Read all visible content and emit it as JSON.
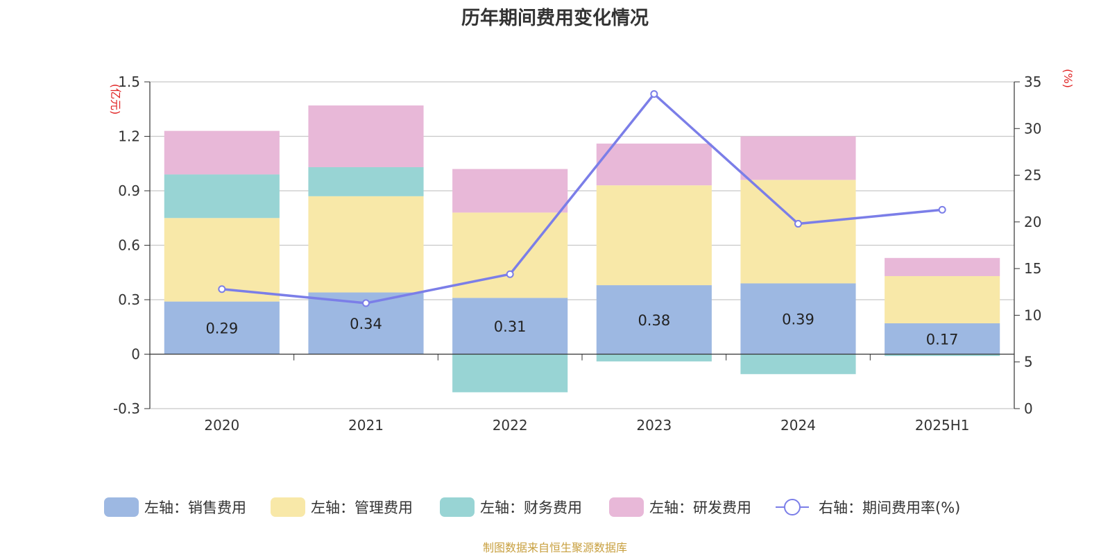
{
  "chart_data": {
    "type": "bar",
    "title": "历年期间费用变化情况",
    "categories": [
      "2020",
      "2021",
      "2022",
      "2023",
      "2024",
      "2025H1"
    ],
    "y_left": {
      "unit": "(亿元)",
      "min": -0.3,
      "max": 1.5,
      "ticks": [
        -0.3,
        0,
        0.3,
        0.6,
        0.9,
        1.2,
        1.5
      ],
      "tick_labels": [
        "-0.3",
        "0",
        "0.3",
        "0.6",
        "0.9",
        "1.2",
        "1.5"
      ]
    },
    "y_right": {
      "unit": "(%)",
      "min": 0,
      "max": 35,
      "ticks": [
        0,
        5,
        10,
        15,
        20,
        25,
        30,
        35
      ],
      "tick_labels": [
        "0",
        "5",
        "10",
        "15",
        "20",
        "25",
        "30",
        "35"
      ]
    },
    "grid": true,
    "legend_position": "bottom",
    "series": [
      {
        "name": "左轴：销售费用",
        "type": "bar",
        "axis": "left",
        "color": "#9db8e2",
        "values": [
          0.29,
          0.34,
          0.31,
          0.38,
          0.39,
          0.17
        ],
        "labels": [
          "0.29",
          "0.34",
          "0.31",
          "0.38",
          "0.39",
          "0.17"
        ]
      },
      {
        "name": "左轴：管理费用",
        "type": "bar",
        "axis": "left",
        "color": "#f8e8a8",
        "values": [
          0.46,
          0.53,
          0.47,
          0.55,
          0.57,
          0.26
        ]
      },
      {
        "name": "左轴：财务费用",
        "type": "bar",
        "axis": "left",
        "color": "#98d4d4",
        "values": [
          0.24,
          0.16,
          -0.21,
          -0.04,
          -0.11,
          -0.01
        ]
      },
      {
        "name": "左轴：研发费用",
        "type": "bar",
        "axis": "left",
        "color": "#e8b8d8",
        "values": [
          0.24,
          0.34,
          0.24,
          0.23,
          0.24,
          0.1
        ]
      },
      {
        "name": "右轴：期间费用率(%)",
        "type": "line",
        "axis": "right",
        "color": "#7b7ee8",
        "values": [
          12.8,
          11.3,
          14.4,
          33.7,
          19.8,
          21.3
        ]
      }
    ]
  },
  "source_text": "制图数据来自恒生聚源数据库"
}
